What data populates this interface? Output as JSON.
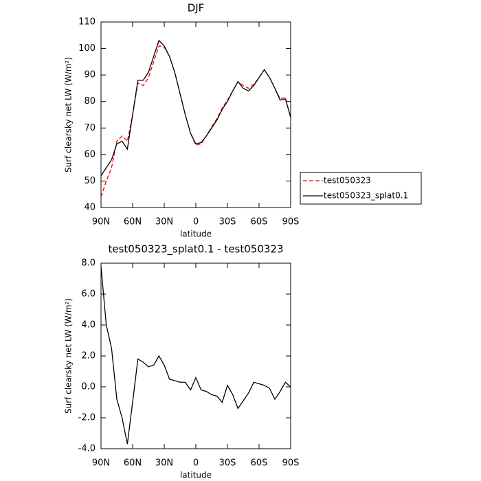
{
  "chart_data": [
    {
      "type": "line",
      "title": "DJF",
      "xlabel": "latitude",
      "ylabel": "Surf clearsky net LW (W/m²)",
      "x": [
        90,
        85,
        80,
        75,
        70,
        65,
        60,
        55,
        50,
        45,
        40,
        35,
        30,
        25,
        20,
        15,
        10,
        5,
        0,
        -5,
        -10,
        -15,
        -20,
        -25,
        -30,
        -35,
        -40,
        -45,
        -50,
        -55,
        -60,
        -65,
        -70,
        -75,
        -80,
        -85,
        -90
      ],
      "series": [
        {
          "name": "test050323",
          "color": "#ff0000",
          "dash": "dashed",
          "values": [
            44,
            50,
            55,
            65,
            67,
            65,
            75,
            87,
            86,
            89,
            95,
            101,
            100.5,
            97,
            91,
            83,
            75,
            68,
            63.5,
            64,
            67,
            70.5,
            73.5,
            77.5,
            80.5,
            84,
            87.5,
            86,
            85,
            86.5,
            89,
            92,
            89,
            85,
            81,
            81.5,
            74
          ]
        },
        {
          "name": "test050323_splat0.1",
          "color": "#000000",
          "dash": "solid",
          "values": [
            52,
            55,
            58,
            64,
            65,
            62,
            75,
            88,
            88,
            91,
            97,
            103,
            101,
            97,
            91,
            83,
            75,
            68,
            64,
            64.5,
            67,
            70,
            73,
            77,
            80,
            84,
            87.5,
            85,
            84,
            86,
            89,
            92,
            89,
            85,
            80.5,
            81,
            74
          ]
        }
      ],
      "xlim": [
        90,
        -90
      ],
      "xticks": [
        {
          "value": 90,
          "label": "90N"
        },
        {
          "value": 60,
          "label": "60N"
        },
        {
          "value": 30,
          "label": "30N"
        },
        0,
        {
          "value": -30,
          "label": "30S"
        },
        {
          "value": -60,
          "label": "60S"
        },
        {
          "value": -90,
          "label": "90S"
        }
      ],
      "ylim": [
        40,
        110
      ],
      "yticks": [
        40,
        50,
        60,
        70,
        80,
        90,
        100,
        110
      ],
      "legend": "right"
    },
    {
      "type": "line",
      "title": "test050323_splat0.1 - test050323",
      "xlabel": "latitude",
      "ylabel": "Surf clearsky net LW (W/m²)",
      "x": [
        90,
        85,
        80,
        75,
        70,
        65,
        60,
        55,
        50,
        45,
        40,
        35,
        30,
        25,
        20,
        15,
        10,
        5,
        0,
        -5,
        -10,
        -15,
        -20,
        -25,
        -30,
        -35,
        -40,
        -45,
        -50,
        -55,
        -60,
        -65,
        -70,
        -75,
        -80,
        -85,
        -90
      ],
      "values": [
        7.8,
        4.0,
        2.5,
        -0.8,
        -2.0,
        -3.7,
        -1.0,
        1.8,
        1.6,
        1.3,
        1.4,
        2.0,
        1.4,
        0.5,
        0.4,
        0.3,
        0.3,
        -0.2,
        0.6,
        -0.2,
        -0.3,
        -0.5,
        -0.6,
        -1.0,
        0.1,
        -0.5,
        -1.4,
        -0.9,
        -0.4,
        0.3,
        0.2,
        0.1,
        -0.1,
        -0.8,
        -0.3,
        0.3,
        0.0
      ],
      "color": "#000000",
      "xlim": [
        90,
        -90
      ],
      "xticks": [
        {
          "value": 90,
          "label": "90N"
        },
        {
          "value": 60,
          "label": "60N"
        },
        {
          "value": 30,
          "label": "30N"
        },
        0,
        {
          "value": -30,
          "label": "30S"
        },
        {
          "value": -60,
          "label": "60S"
        },
        {
          "value": -90,
          "label": "90S"
        }
      ],
      "ylim": [
        -4,
        8
      ],
      "yticks": [
        {
          "value": -4,
          "label": "-4.0"
        },
        {
          "value": -2,
          "label": "-2.0"
        },
        {
          "value": 0,
          "label": "0.0"
        },
        {
          "value": 2,
          "label": "2.0"
        },
        {
          "value": 4,
          "label": "4.0"
        },
        {
          "value": 6,
          "label": "6.0"
        },
        {
          "value": 8,
          "label": "8.0"
        }
      ]
    }
  ]
}
